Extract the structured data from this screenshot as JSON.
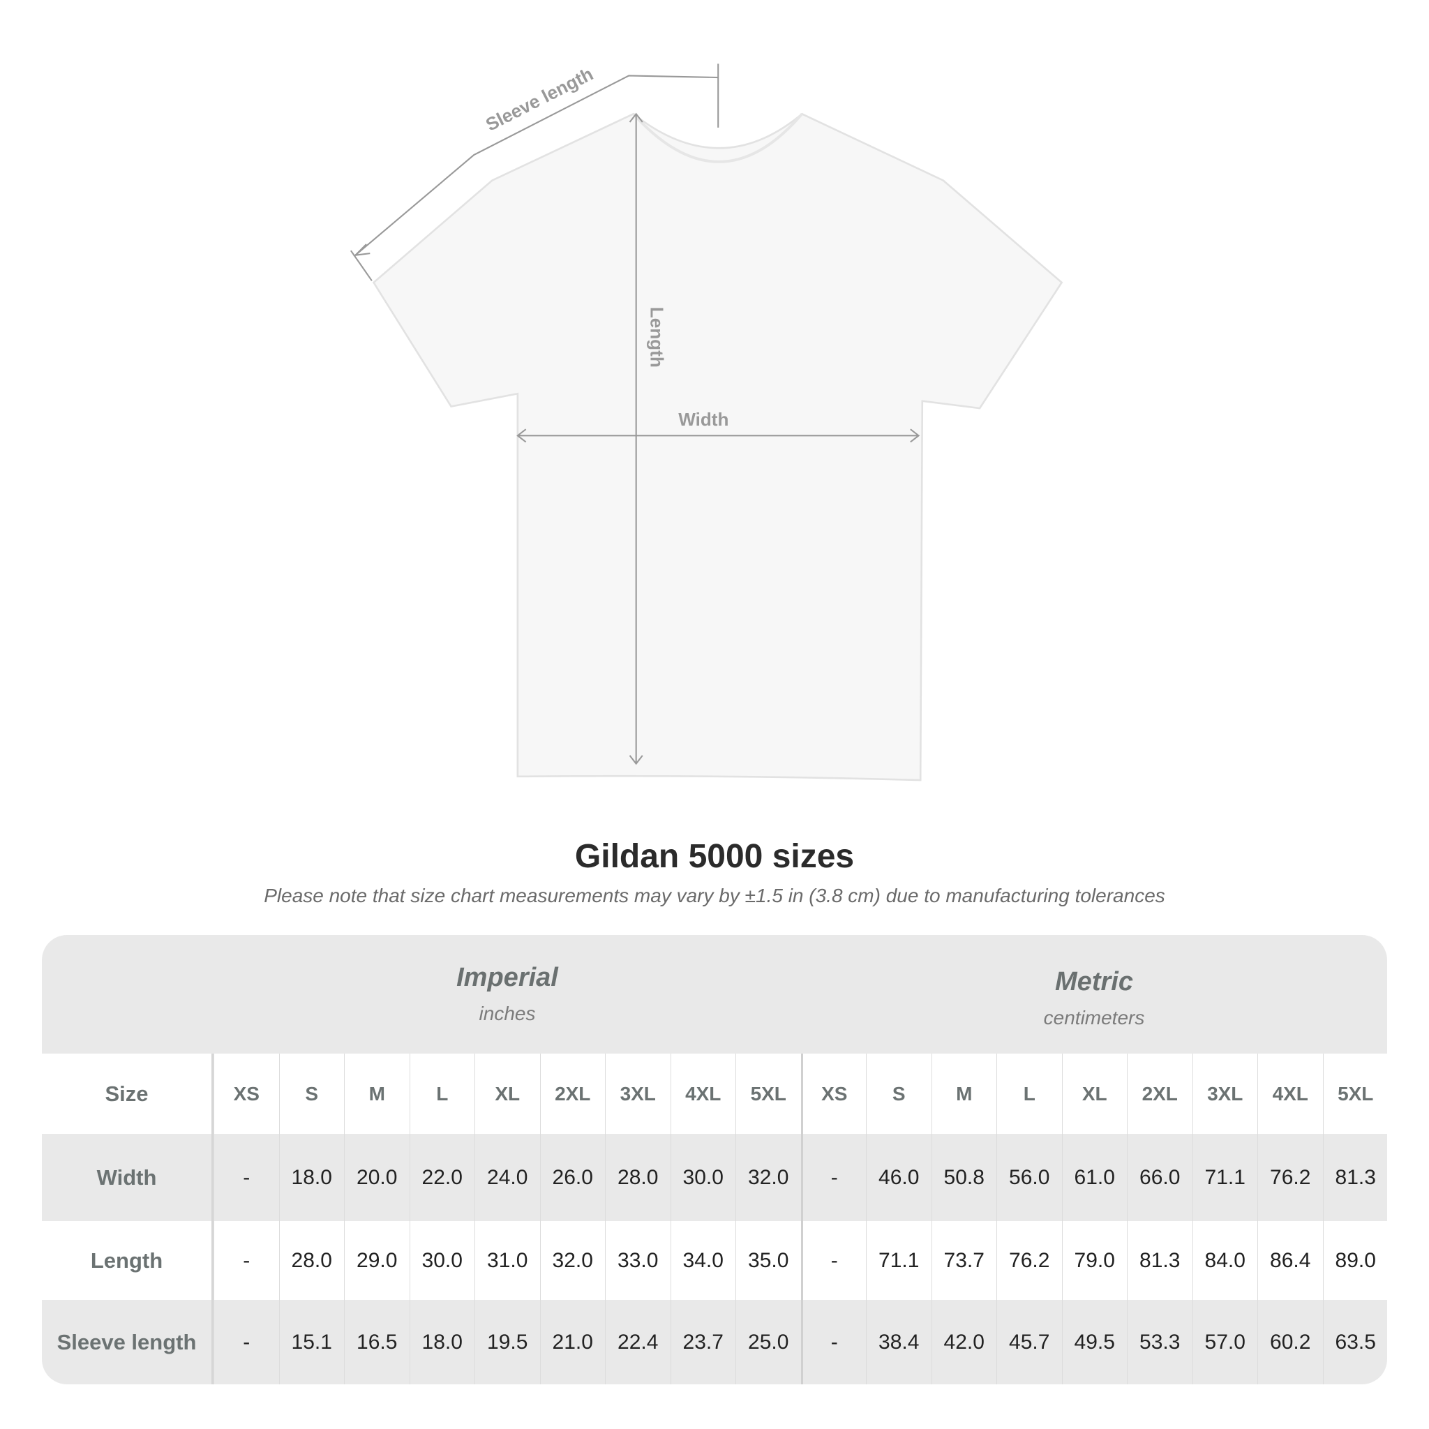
{
  "diagram": {
    "labels": {
      "sleeve": "Sleeve length",
      "length": "Length",
      "width": "Width"
    },
    "colors": {
      "shirt": "#f7f7f7",
      "outline": "#e2e2e2",
      "measure": "#999999"
    }
  },
  "title": "Gildan 5000 sizes",
  "subtitle": "Please note that size chart measurements may vary by ±1.5 in (3.8 cm) due to manufacturing tolerances",
  "table": {
    "imperial": {
      "label": "Imperial",
      "unit": "inches"
    },
    "metric": {
      "label": "Metric",
      "unit": "centimeters"
    },
    "size_label": "Size",
    "sizes": [
      "XS",
      "S",
      "M",
      "L",
      "XL",
      "2XL",
      "3XL",
      "4XL",
      "5XL"
    ],
    "rows": [
      {
        "label": "Width",
        "imperial": [
          "-",
          "18.0",
          "20.0",
          "22.0",
          "24.0",
          "26.0",
          "28.0",
          "30.0",
          "32.0"
        ],
        "metric": [
          "-",
          "46.0",
          "50.8",
          "56.0",
          "61.0",
          "66.0",
          "71.1",
          "76.2",
          "81.3"
        ]
      },
      {
        "label": "Length",
        "imperial": [
          "-",
          "28.0",
          "29.0",
          "30.0",
          "31.0",
          "32.0",
          "33.0",
          "34.0",
          "35.0"
        ],
        "metric": [
          "-",
          "71.1",
          "73.7",
          "76.2",
          "79.0",
          "81.3",
          "84.0",
          "86.4",
          "89.0"
        ]
      },
      {
        "label": "Sleeve length",
        "imperial": [
          "-",
          "15.1",
          "16.5",
          "18.0",
          "19.5",
          "21.0",
          "22.4",
          "23.7",
          "25.0"
        ],
        "metric": [
          "-",
          "38.4",
          "42.0",
          "45.7",
          "49.5",
          "53.3",
          "57.0",
          "60.2",
          "63.5"
        ]
      }
    ]
  }
}
